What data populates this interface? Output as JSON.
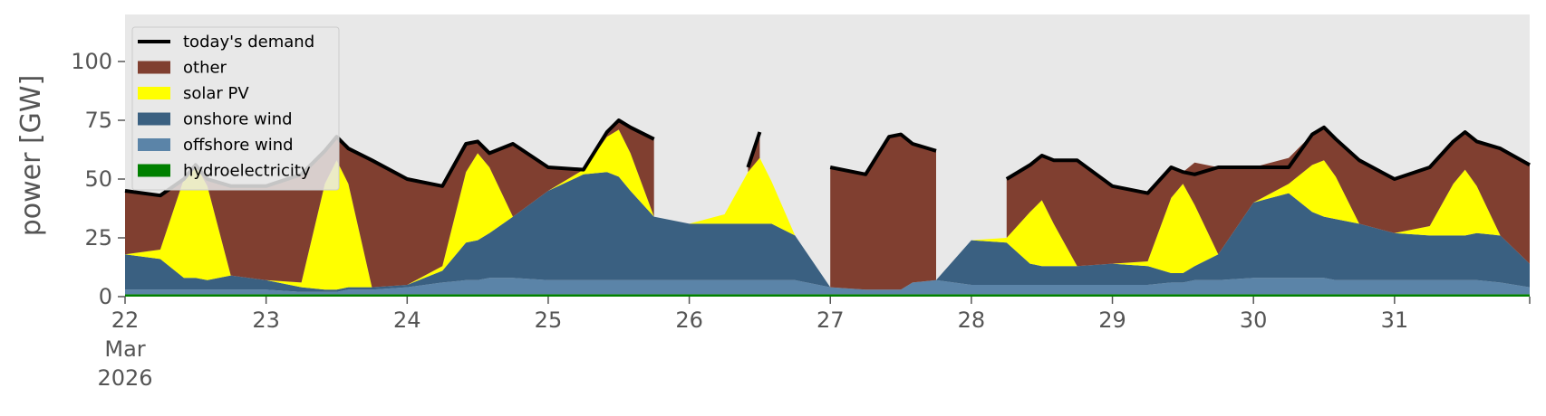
{
  "chart_data": {
    "type": "area",
    "title": "",
    "xlabel": "",
    "ylabel": "power [GW]",
    "xlim": [
      "2026-03-22T00:00",
      "2026-03-31T23:00"
    ],
    "ylim": [
      0,
      120
    ],
    "y_ticks": [
      0,
      25,
      50,
      75,
      100
    ],
    "x_ticks": [
      {
        "date": "2026-03-22",
        "label": "22",
        "sublabel": "Mar",
        "sublabel2": "2026"
      },
      {
        "date": "2026-03-23",
        "label": "23"
      },
      {
        "date": "2026-03-24",
        "label": "24"
      },
      {
        "date": "2026-03-25",
        "label": "25"
      },
      {
        "date": "2026-03-26",
        "label": "26"
      },
      {
        "date": "2026-03-27",
        "label": "27"
      },
      {
        "date": "2026-03-28",
        "label": "28"
      },
      {
        "date": "2026-03-29",
        "label": "29"
      },
      {
        "date": "2026-03-30",
        "label": "30"
      },
      {
        "date": "2026-03-31",
        "label": "31"
      }
    ],
    "legend_position": "upper-left",
    "grid": false,
    "background": "#e8e8e8",
    "x": [
      "2026-03-22T00:00",
      "2026-03-22T06:00",
      "2026-03-22T10:00",
      "2026-03-22T12:00",
      "2026-03-22T14:00",
      "2026-03-22T18:00",
      "2026-03-23T00:00",
      "2026-03-23T06:00",
      "2026-03-23T10:00",
      "2026-03-23T12:00",
      "2026-03-23T14:00",
      "2026-03-23T18:00",
      "2026-03-24T00:00",
      "2026-03-24T06:00",
      "2026-03-24T10:00",
      "2026-03-24T12:00",
      "2026-03-24T14:00",
      "2026-03-24T18:00",
      "2026-03-25T00:00",
      "2026-03-25T06:00",
      "2026-03-25T10:00",
      "2026-03-25T12:00",
      "2026-03-25T14:00",
      "2026-03-25T18:00",
      "2026-03-26T00:00",
      "2026-03-26T06:00",
      "2026-03-26T10:00",
      "2026-03-26T12:00",
      "2026-03-26T14:00",
      "2026-03-26T18:00",
      "2026-03-27T00:00",
      "2026-03-27T06:00",
      "2026-03-27T10:00",
      "2026-03-27T12:00",
      "2026-03-27T14:00",
      "2026-03-27T18:00",
      "2026-03-28T00:00",
      "2026-03-28T06:00",
      "2026-03-28T10:00",
      "2026-03-28T12:00",
      "2026-03-28T14:00",
      "2026-03-28T18:00",
      "2026-03-29T00:00",
      "2026-03-29T06:00",
      "2026-03-29T10:00",
      "2026-03-29T12:00",
      "2026-03-29T14:00",
      "2026-03-29T18:00",
      "2026-03-30T00:00",
      "2026-03-30T06:00",
      "2026-03-30T10:00",
      "2026-03-30T12:00",
      "2026-03-30T14:00",
      "2026-03-30T18:00",
      "2026-03-31T00:00",
      "2026-03-31T06:00",
      "2026-03-31T10:00",
      "2026-03-31T12:00",
      "2026-03-31T14:00",
      "2026-03-31T18:00",
      "2026-03-31T23:00"
    ],
    "demand": [
      45,
      43,
      50,
      56,
      50,
      47,
      47,
      52,
      62,
      68,
      63,
      58,
      50,
      47,
      65,
      66,
      61,
      65,
      55,
      54,
      70,
      75,
      72,
      67,
      null,
      null,
      55,
      70,
      null,
      null,
      55,
      52,
      68,
      69,
      65,
      62,
      null,
      50,
      56,
      60,
      58,
      58,
      47,
      44,
      55,
      53,
      52,
      55,
      55,
      55,
      69,
      72,
      67,
      58,
      50,
      55,
      66,
      70,
      66,
      63,
      56
    ],
    "series": [
      {
        "name": "hydroelectricity",
        "color": "#008000",
        "values": [
          1,
          1,
          1,
          1,
          1,
          1,
          1,
          1,
          1,
          1,
          1,
          1,
          1,
          1,
          1,
          1,
          1,
          1,
          1,
          1,
          1,
          1,
          1,
          1,
          1,
          1,
          1,
          1,
          1,
          1,
          1,
          1,
          1,
          1,
          1,
          1,
          1,
          1,
          1,
          1,
          1,
          1,
          1,
          1,
          1,
          1,
          1,
          1,
          1,
          1,
          1,
          1,
          1,
          1,
          1,
          1,
          1,
          1,
          1,
          1,
          1
        ]
      },
      {
        "name": "offshore wind",
        "color": "#5b84a8",
        "values": [
          2,
          2,
          2,
          2,
          2,
          2,
          2,
          1,
          1,
          1,
          2,
          2,
          3,
          5,
          6,
          6,
          7,
          7,
          6,
          6,
          6,
          6,
          6,
          6,
          6,
          6,
          6,
          6,
          6,
          6,
          3,
          2,
          2,
          2,
          5,
          6,
          4,
          4,
          4,
          4,
          4,
          4,
          4,
          4,
          5,
          5,
          6,
          6,
          7,
          7,
          7,
          7,
          6,
          6,
          6,
          6,
          6,
          6,
          6,
          5,
          3
        ]
      },
      {
        "name": "onshore wind",
        "color": "#3a6081",
        "values": [
          15,
          13,
          5,
          5,
          4,
          6,
          4,
          2,
          1,
          1,
          1,
          1,
          1,
          5,
          16,
          17,
          19,
          26,
          38,
          45,
          46,
          44,
          38,
          27,
          24,
          24,
          24,
          24,
          24,
          19,
          0,
          0,
          0,
          0,
          0,
          0,
          19,
          18,
          9,
          8,
          8,
          8,
          9,
          8,
          4,
          4,
          6,
          11,
          32,
          36,
          28,
          26,
          26,
          24,
          20,
          19,
          19,
          19,
          20,
          20,
          10
        ]
      },
      {
        "name": "solar PV",
        "color": "#ffff00",
        "values": [
          0,
          4,
          42,
          48,
          40,
          0,
          0,
          2,
          45,
          55,
          44,
          0,
          0,
          2,
          30,
          37,
          28,
          0,
          0,
          2,
          15,
          20,
          16,
          0,
          0,
          4,
          22,
          28,
          18,
          0,
          0,
          0,
          0,
          0,
          0,
          0,
          0,
          2,
          22,
          28,
          18,
          0,
          0,
          2,
          32,
          38,
          26,
          0,
          0,
          4,
          20,
          24,
          18,
          0,
          0,
          4,
          22,
          28,
          20,
          0,
          0
        ]
      },
      {
        "name": "other",
        "color": "#803f30",
        "values": [
          27,
          23,
          0,
          0,
          3,
          38,
          40,
          46,
          14,
          10,
          15,
          54,
          45,
          34,
          12,
          5,
          6,
          31,
          10,
          0,
          2,
          4,
          11,
          33,
          null,
          null,
          2,
          11,
          null,
          null,
          51,
          49,
          65,
          66,
          59,
          55,
          null,
          25,
          20,
          19,
          27,
          45,
          33,
          29,
          13,
          5,
          18,
          37,
          15,
          11,
          13,
          14,
          16,
          27,
          23,
          25,
          18,
          16,
          19,
          37,
          42
        ]
      }
    ],
    "legend": [
      {
        "name": "today's demand",
        "kind": "line",
        "color": "#000000"
      },
      {
        "name": "other",
        "kind": "area",
        "color": "#803f30"
      },
      {
        "name": "solar PV",
        "kind": "area",
        "color": "#ffff00"
      },
      {
        "name": "onshore wind",
        "kind": "area",
        "color": "#3a6081"
      },
      {
        "name": "offshore wind",
        "kind": "area",
        "color": "#5b84a8"
      },
      {
        "name": "hydroelectricity",
        "kind": "area",
        "color": "#008000"
      }
    ]
  }
}
